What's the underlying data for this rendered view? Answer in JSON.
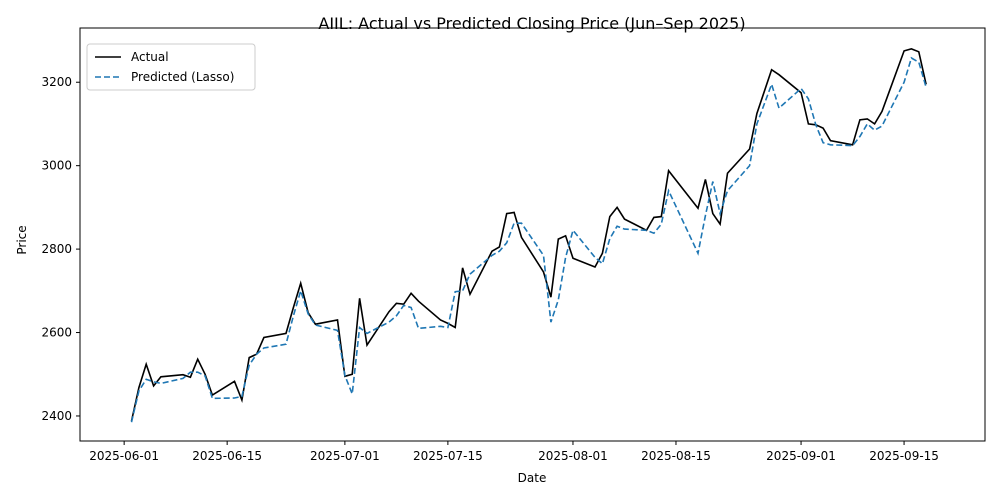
{
  "chart_data": {
    "type": "line",
    "title": "AIIL: Actual vs Predicted Closing Price (Jun–Sep 2025)",
    "xlabel": "Date",
    "ylabel": "Price",
    "xlim": [
      "2025-05-26",
      "2025-09-26"
    ],
    "ylim": [
      2340,
      3330
    ],
    "x_ticks": [
      "2025-06-01",
      "2025-06-15",
      "2025-07-01",
      "2025-07-15",
      "2025-08-01",
      "2025-08-15",
      "2025-09-01",
      "2025-09-15"
    ],
    "y_ticks": [
      2400,
      2600,
      2800,
      3000,
      3200
    ],
    "grid": false,
    "legend_position": "top-left",
    "x": [
      "2025-06-02",
      "2025-06-03",
      "2025-06-04",
      "2025-06-05",
      "2025-06-06",
      "2025-06-09",
      "2025-06-10",
      "2025-06-11",
      "2025-06-12",
      "2025-06-13",
      "2025-06-16",
      "2025-06-17",
      "2025-06-18",
      "2025-06-19",
      "2025-06-20",
      "2025-06-23",
      "2025-06-24",
      "2025-06-25",
      "2025-06-26",
      "2025-06-27",
      "2025-06-30",
      "2025-07-01",
      "2025-07-02",
      "2025-07-03",
      "2025-07-04",
      "2025-07-07",
      "2025-07-08",
      "2025-07-09",
      "2025-07-10",
      "2025-07-11",
      "2025-07-14",
      "2025-07-15",
      "2025-07-16",
      "2025-07-17",
      "2025-07-18",
      "2025-07-21",
      "2025-07-22",
      "2025-07-23",
      "2025-07-24",
      "2025-07-25",
      "2025-07-28",
      "2025-07-29",
      "2025-07-30",
      "2025-07-31",
      "2025-08-01",
      "2025-08-04",
      "2025-08-05",
      "2025-08-06",
      "2025-08-07",
      "2025-08-08",
      "2025-08-11",
      "2025-08-12",
      "2025-08-13",
      "2025-08-14",
      "2025-08-18",
      "2025-08-19",
      "2025-08-20",
      "2025-08-21",
      "2025-08-22",
      "2025-08-25",
      "2025-08-26",
      "2025-08-28",
      "2025-08-29",
      "2025-09-01",
      "2025-09-02",
      "2025-09-03",
      "2025-09-04",
      "2025-09-05",
      "2025-09-08",
      "2025-09-09",
      "2025-09-10",
      "2025-09-11",
      "2025-09-12",
      "2025-09-15",
      "2025-09-16",
      "2025-09-17",
      "2025-09-18"
    ],
    "series": [
      {
        "name": "Actual",
        "color": "#000000",
        "style": "solid",
        "values": [
          2388,
          2468,
          2524,
          2472,
          2494,
          2499,
          2493,
          2536,
          2500,
          2450,
          2483,
          2438,
          2540,
          2548,
          2588,
          2598,
          2660,
          2718,
          2648,
          2620,
          2630,
          2495,
          2500,
          2682,
          2570,
          2650,
          2670,
          2668,
          2694,
          2675,
          2630,
          2622,
          2612,
          2755,
          2692,
          2795,
          2805,
          2885,
          2888,
          2828,
          2745,
          2685,
          2824,
          2832,
          2778,
          2757,
          2790,
          2878,
          2900,
          2872,
          2845,
          2876,
          2878,
          2988,
          2898,
          2967,
          2885,
          2860,
          2982,
          3040,
          3125,
          3230,
          3218,
          3175,
          3100,
          3098,
          3090,
          3060,
          3050,
          3110,
          3112,
          3100,
          3130,
          3275,
          3280,
          3273,
          3195
        ]
      },
      {
        "name": "Predicted (Lasso)",
        "color": "#1f77b4",
        "style": "dashed",
        "values": [
          2385,
          2460,
          2488,
          2482,
          2478,
          2490,
          2505,
          2505,
          2496,
          2442,
          2443,
          2447,
          2522,
          2548,
          2563,
          2572,
          2640,
          2700,
          2645,
          2618,
          2605,
          2497,
          2453,
          2612,
          2598,
          2625,
          2640,
          2665,
          2660,
          2610,
          2615,
          2612,
          2698,
          2700,
          2740,
          2785,
          2795,
          2815,
          2862,
          2862,
          2785,
          2625,
          2678,
          2780,
          2845,
          2780,
          2765,
          2825,
          2855,
          2848,
          2845,
          2838,
          2860,
          2940,
          2790,
          2880,
          2962,
          2885,
          2940,
          3000,
          3100,
          3195,
          3138,
          3185,
          3160,
          3098,
          3055,
          3050,
          3048,
          3070,
          3100,
          3085,
          3095,
          3200,
          3258,
          3248,
          3188
        ]
      }
    ]
  }
}
